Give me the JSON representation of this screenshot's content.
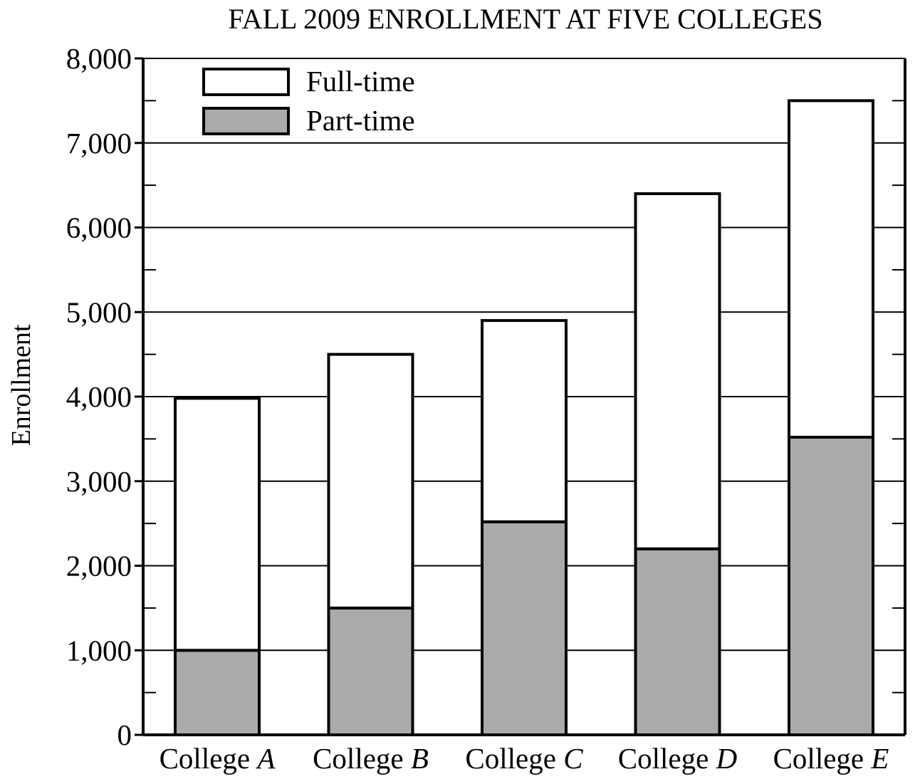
{
  "chart_data": {
    "type": "bar",
    "stacked": true,
    "title": "FALL 2009 ENROLLMENT AT FIVE COLLEGES",
    "xlabel": "",
    "ylabel": "Enrollment",
    "ylim": [
      0,
      8000
    ],
    "y_ticks": [
      "0",
      "1,000",
      "2,000",
      "3,000",
      "4,000",
      "5,000",
      "6,000",
      "7,000",
      "8,000"
    ],
    "y_tick_values": [
      0,
      1000,
      2000,
      3000,
      4000,
      5000,
      6000,
      7000,
      8000
    ],
    "y_minor_step": 500,
    "grid": "horizontal major lines",
    "legend_position": "top-left",
    "categories": [
      {
        "prefix": "College ",
        "letter": "A"
      },
      {
        "prefix": "College ",
        "letter": "B"
      },
      {
        "prefix": "College ",
        "letter": "C"
      },
      {
        "prefix": "College ",
        "letter": "D"
      },
      {
        "prefix": "College ",
        "letter": "E"
      }
    ],
    "series": [
      {
        "name": "Part-time",
        "color": "#aaaaaa",
        "values": [
          1000,
          1500,
          2520,
          2200,
          3520
        ]
      },
      {
        "name": "Full-time",
        "color": "#ffffff",
        "values": [
          2980,
          3000,
          2380,
          4200,
          3980
        ]
      }
    ],
    "legend": [
      {
        "name": "Full-time",
        "color": "#ffffff"
      },
      {
        "name": "Part-time",
        "color": "#aaaaaa"
      }
    ]
  }
}
